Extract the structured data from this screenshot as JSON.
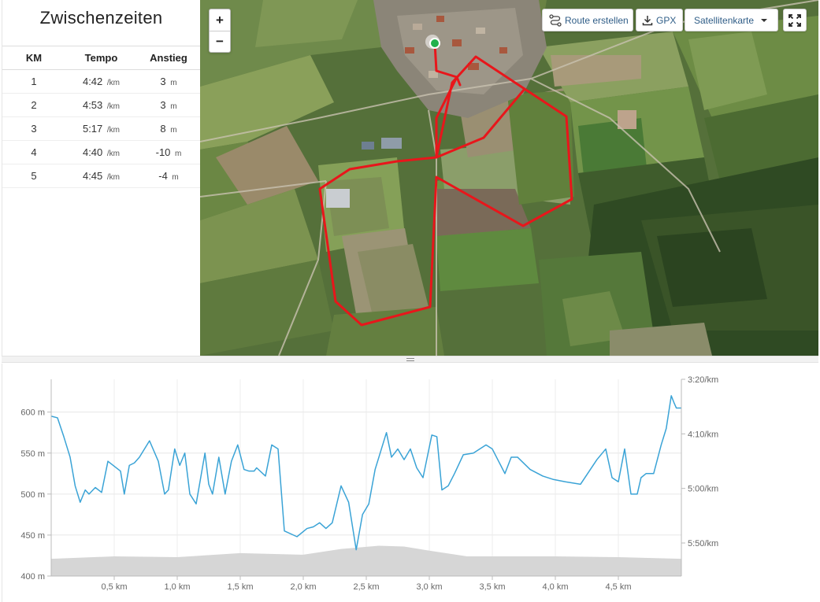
{
  "splits": {
    "title": "Zwischenzeiten",
    "columns": [
      "KM",
      "Tempo",
      "Anstieg"
    ],
    "pace_unit": "/km",
    "climb_unit": "m",
    "rows": [
      {
        "km": "1",
        "pace": "4:42",
        "climb": "3"
      },
      {
        "km": "2",
        "pace": "4:53",
        "climb": "3"
      },
      {
        "km": "3",
        "pace": "5:17",
        "climb": "8"
      },
      {
        "km": "4",
        "pace": "4:40",
        "climb": "-10"
      },
      {
        "km": "5",
        "pace": "4:45",
        "climb": "-4"
      }
    ]
  },
  "map": {
    "zoom_in_label": "+",
    "zoom_out_label": "−",
    "route_button_label": "Route erstellen",
    "gpx_button_label": "GPX",
    "layer_select_value": "Satellitenkarte",
    "route_color": "#e8161b",
    "start_marker_color": "#22b14c",
    "icons": {
      "route": "route-icon",
      "gpx": "download-icon",
      "layer": "caret-down-icon",
      "fullscreen": "fullscreen-icon"
    }
  },
  "chart_data": {
    "type": "line",
    "series": [
      {
        "axis": "pace",
        "color": "#3aa3d6",
        "x": [
          0.0,
          0.05,
          0.1,
          0.15,
          0.19,
          0.23,
          0.27,
          0.3,
          0.35,
          0.4,
          0.45,
          0.55,
          0.58,
          0.62,
          0.66,
          0.7,
          0.78,
          0.85,
          0.9,
          0.93,
          0.98,
          1.02,
          1.06,
          1.1,
          1.15,
          1.22,
          1.25,
          1.28,
          1.33,
          1.38,
          1.43,
          1.48,
          1.53,
          1.57,
          1.61,
          1.63,
          1.7,
          1.75,
          1.8,
          1.85,
          1.95,
          2.03,
          2.08,
          2.13,
          2.18,
          2.23,
          2.3,
          2.36,
          2.42,
          2.47,
          2.52,
          2.57,
          2.62,
          2.66,
          2.7,
          2.75,
          2.8,
          2.85,
          2.9,
          2.95,
          3.02,
          3.06,
          3.1,
          3.15,
          3.2,
          3.27,
          3.35,
          3.45,
          3.5,
          3.55,
          3.6,
          3.65,
          3.7,
          3.8,
          3.9,
          3.98,
          4.08,
          4.2,
          4.33,
          4.4,
          4.45,
          4.5,
          4.55,
          4.6,
          4.65,
          4.68,
          4.72,
          4.78,
          4.84,
          4.88,
          4.92,
          4.94,
          4.96,
          5.0
        ],
        "y": [
          595,
          593,
          570,
          545,
          510,
          490,
          505,
          500,
          508,
          502,
          540,
          528,
          500,
          535,
          538,
          545,
          565,
          540,
          500,
          505,
          555,
          535,
          550,
          500,
          488,
          550,
          512,
          500,
          545,
          500,
          540,
          560,
          530,
          528,
          528,
          532,
          522,
          560,
          555,
          455,
          448,
          458,
          460,
          465,
          458,
          465,
          510,
          490,
          432,
          475,
          488,
          530,
          555,
          575,
          545,
          555,
          542,
          555,
          532,
          520,
          572,
          570,
          505,
          510,
          525,
          548,
          550,
          560,
          555,
          540,
          525,
          545,
          545,
          530,
          522,
          518,
          515,
          512,
          542,
          555,
          520,
          515,
          555,
          500,
          500,
          520,
          525,
          525,
          560,
          580,
          620,
          612,
          605,
          605
        ],
        "labels_y_pace": [
          "3:20/km",
          "4:10/km",
          "5:00/km",
          "5:50/km"
        ]
      },
      {
        "axis": "elevation",
        "color": "#d6d6d6",
        "x": [
          0.0,
          0.5,
          1.0,
          1.5,
          2.0,
          2.3,
          2.6,
          2.8,
          3.0,
          3.3,
          3.6,
          4.0,
          4.5,
          5.0
        ],
        "y": [
          421,
          424,
          423,
          428,
          426,
          433,
          437,
          436,
          431,
          424,
          424,
          424,
          423,
          421
        ]
      }
    ],
    "x_ticks": [
      0.5,
      1.0,
      1.5,
      2.0,
      2.5,
      3.0,
      3.5,
      4.0,
      4.5
    ],
    "x_tick_labels": [
      "0,5 km",
      "1,0 km",
      "1,5 km",
      "2,0 km",
      "2,5 km",
      "3,0 km",
      "3,5 km",
      "4,0 km",
      "4,5 km"
    ],
    "y_ticks": [
      400,
      450,
      500,
      550,
      600
    ],
    "y_tick_labels": [
      "400 m",
      "450 m",
      "500 m",
      "550 m",
      "600 m"
    ],
    "xlim": [
      0,
      5.0
    ],
    "ylim": [
      400,
      640
    ],
    "grid": true
  }
}
